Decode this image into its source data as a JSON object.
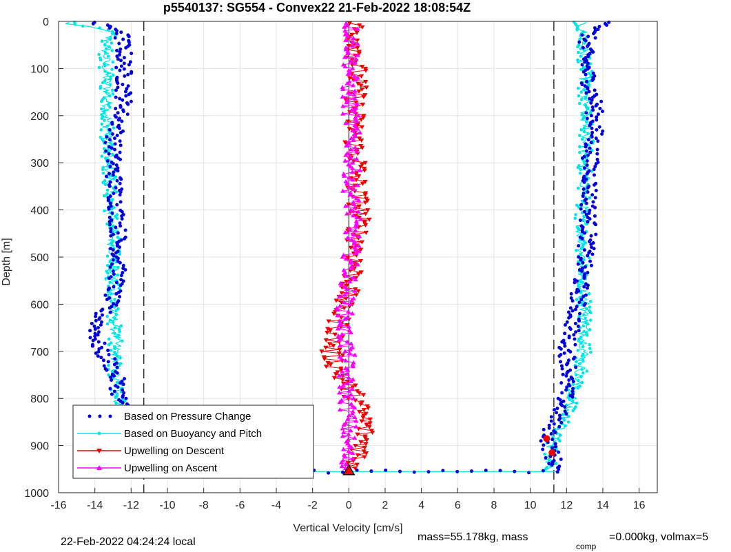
{
  "chart_data": {
    "type": "scatter",
    "title": "p5540137: SG554 - Convex22 21-Feb-2022 18:08:54Z",
    "xlabel": "Vertical Velocity [cm/s]",
    "ylabel": "Depth [m]",
    "xlim": [
      -16,
      17
    ],
    "ylim": [
      0,
      1000
    ],
    "y_reversed": true,
    "x_ticks": [
      -16,
      -14,
      -12,
      -10,
      -8,
      -6,
      -4,
      -2,
      0,
      2,
      4,
      6,
      8,
      10,
      12,
      14,
      16
    ],
    "y_ticks": [
      0,
      100,
      200,
      300,
      400,
      500,
      600,
      700,
      800,
      900,
      1000
    ],
    "grid": true,
    "legend_position": "bottom-left",
    "reference_lines": {
      "dashed_vertical_x": [
        -11.3,
        11.3
      ],
      "solid_vertical_x": 0,
      "solid_vertical_depth_range": [
        0,
        955
      ]
    },
    "series": [
      {
        "name": "Based on Pressure Change",
        "color": "#0000d9",
        "marker": "dot",
        "depth": [
          5,
          20,
          40,
          70,
          100,
          120,
          150,
          180,
          200,
          230,
          260,
          300,
          350,
          400,
          450,
          500,
          550,
          600,
          620,
          650,
          680,
          700,
          720,
          740,
          760,
          800,
          830,
          860,
          890,
          920,
          950
        ],
        "descent_x": [
          -14.0,
          -12.5,
          -12.5,
          -12.4,
          -12.4,
          -12.4,
          -12.4,
          -12.4,
          -12.6,
          -12.8,
          -13.0,
          -13.0,
          -12.9,
          -12.8,
          -12.7,
          -12.7,
          -12.8,
          -13.2,
          -13.6,
          -13.9,
          -13.9,
          -13.7,
          -13.2,
          -13.0,
          -12.8,
          -12.6,
          -12.4,
          -12.1,
          -11.9,
          -12.1,
          -12.3
        ],
        "ascent_x": [
          14.5,
          13.3,
          13.1,
          13.0,
          13.1,
          13.2,
          13.4,
          13.6,
          13.5,
          13.6,
          13.4,
          13.3,
          13.3,
          13.2,
          13.2,
          13.0,
          12.8,
          12.6,
          12.5,
          12.3,
          12.1,
          12.0,
          12.1,
          12.2,
          12.0,
          11.9,
          11.6,
          11.2,
          11.0,
          11.2,
          11.5
        ]
      },
      {
        "name": "Based on Buoyancy and Pitch",
        "color": "#00e6e6",
        "marker": "line-dot",
        "depth": [
          5,
          20,
          40,
          70,
          100,
          150,
          200,
          250,
          300,
          350,
          400,
          450,
          500,
          550,
          600,
          650,
          700,
          750,
          800,
          850,
          900,
          950
        ],
        "descent_x": [
          -15.5,
          -13.2,
          -13.3,
          -13.4,
          -13.4,
          -13.3,
          -13.3,
          -13.3,
          -13.2,
          -13.2,
          -13.1,
          -13.0,
          -13.0,
          -13.0,
          -13.1,
          -12.9,
          -12.8,
          -12.9,
          -12.7,
          -12.6,
          -12.5,
          -12.4
        ],
        "ascent_x": [
          12.8,
          12.9,
          12.9,
          13.0,
          13.0,
          13.0,
          13.0,
          13.1,
          13.0,
          13.0,
          12.9,
          12.8,
          12.9,
          12.8,
          13.0,
          13.0,
          13.0,
          12.7,
          12.3,
          11.8,
          11.2,
          11.0
        ]
      },
      {
        "name": "Upwelling on Descent",
        "color": "#ee0000",
        "marker": "triangle-down",
        "depth": [
          5,
          50,
          100,
          150,
          200,
          250,
          300,
          350,
          400,
          450,
          500,
          550,
          600,
          650,
          700,
          750,
          800,
          850,
          900,
          950
        ],
        "x": [
          0.3,
          0.5,
          0.4,
          0.4,
          0.3,
          0.3,
          0.5,
          0.4,
          0.6,
          0.5,
          0.4,
          0.2,
          -0.4,
          -0.6,
          -1.0,
          -0.5,
          0.4,
          0.9,
          0.8,
          0.3
        ]
      },
      {
        "name": "Upwelling on Ascent",
        "color": "#ff00ff",
        "marker": "triangle-up",
        "depth": [
          5,
          50,
          100,
          150,
          200,
          250,
          300,
          350,
          400,
          450,
          500,
          550,
          600,
          650,
          700,
          750,
          800,
          850,
          900,
          950
        ],
        "x": [
          0.1,
          0.2,
          0.1,
          0.0,
          0.1,
          0.2,
          0.2,
          0.1,
          0.2,
          0.2,
          0.1,
          0.0,
          -0.2,
          -0.3,
          -0.1,
          -0.2,
          -0.1,
          0.0,
          -0.1,
          -0.2
        ]
      }
    ],
    "apogee_trace": {
      "depth": 955,
      "x_from": -3.5,
      "x_to": 11.5
    },
    "highlight_points": [
      {
        "x": 10.9,
        "depth": 885
      },
      {
        "x": 11.2,
        "depth": 915
      }
    ],
    "apogee_marker": {
      "x": 0,
      "depth": 953
    }
  },
  "footer": {
    "local_time": "22-Feb-2022 04:24:24 local",
    "mass_text": "mass=55.178kg, mass",
    "comp_sub": "comp",
    "comp_text": "=0.000kg, volmax=5"
  }
}
